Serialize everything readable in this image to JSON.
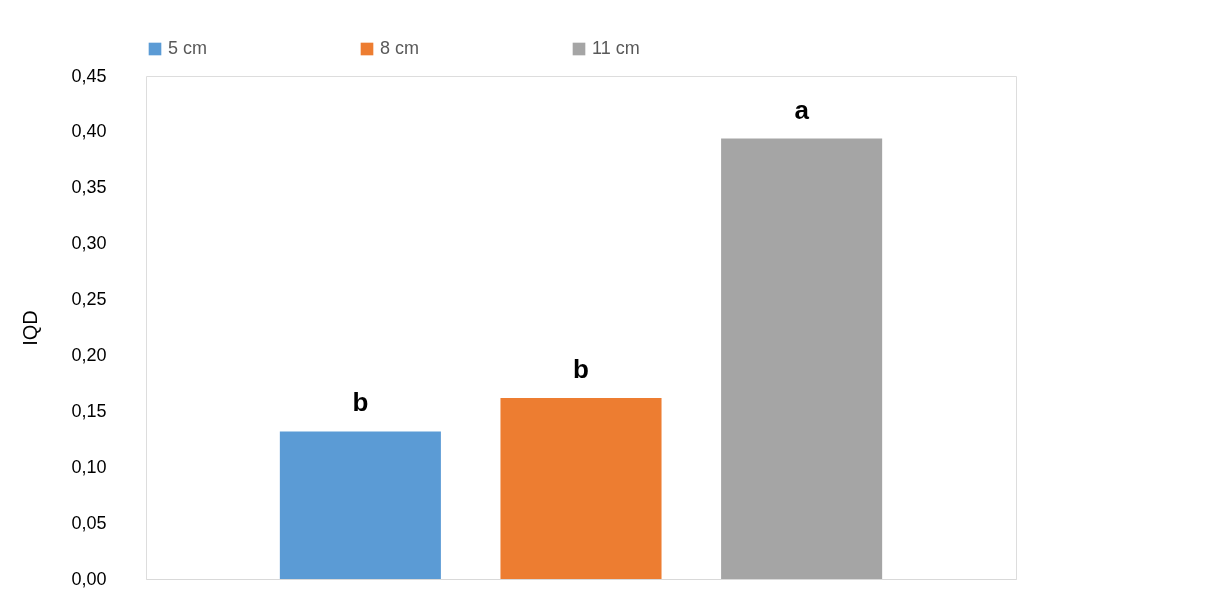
{
  "chart_data": {
    "type": "bar",
    "ylabel": "IQD",
    "categories": [
      null
    ],
    "series": [
      {
        "name": "5 cm",
        "color": "#5b9bd5",
        "values": [
          0.132
        ]
      },
      {
        "name": "8 cm",
        "color": "#ed7d31",
        "values": [
          0.162
        ]
      },
      {
        "name": "11 cm",
        "color": "#a5a5a5",
        "values": [
          0.394
        ]
      }
    ],
    "annotations": [
      {
        "text": "b",
        "y": 0.132
      },
      {
        "text": "b",
        "y": 0.162
      },
      {
        "text": "a",
        "y": 0.394
      }
    ],
    "ylim": [
      0,
      0.45
    ],
    "yticks": [
      {
        "value": 0,
        "label": "0,00"
      },
      {
        "value": 0.05,
        "label": "0,05"
      },
      {
        "value": 0.1,
        "label": "0,10"
      },
      {
        "value": 0.15,
        "label": "0,15"
      },
      {
        "value": 0.2,
        "label": "0,20"
      },
      {
        "value": 0.25,
        "label": "0,25"
      },
      {
        "value": 0.3,
        "label": "0,30"
      },
      {
        "value": 0.35,
        "label": "0,35"
      },
      {
        "value": 0.4,
        "label": "0,40"
      },
      {
        "value": 0.45,
        "label": "0,45"
      }
    ],
    "grid": false,
    "legend": "top"
  }
}
